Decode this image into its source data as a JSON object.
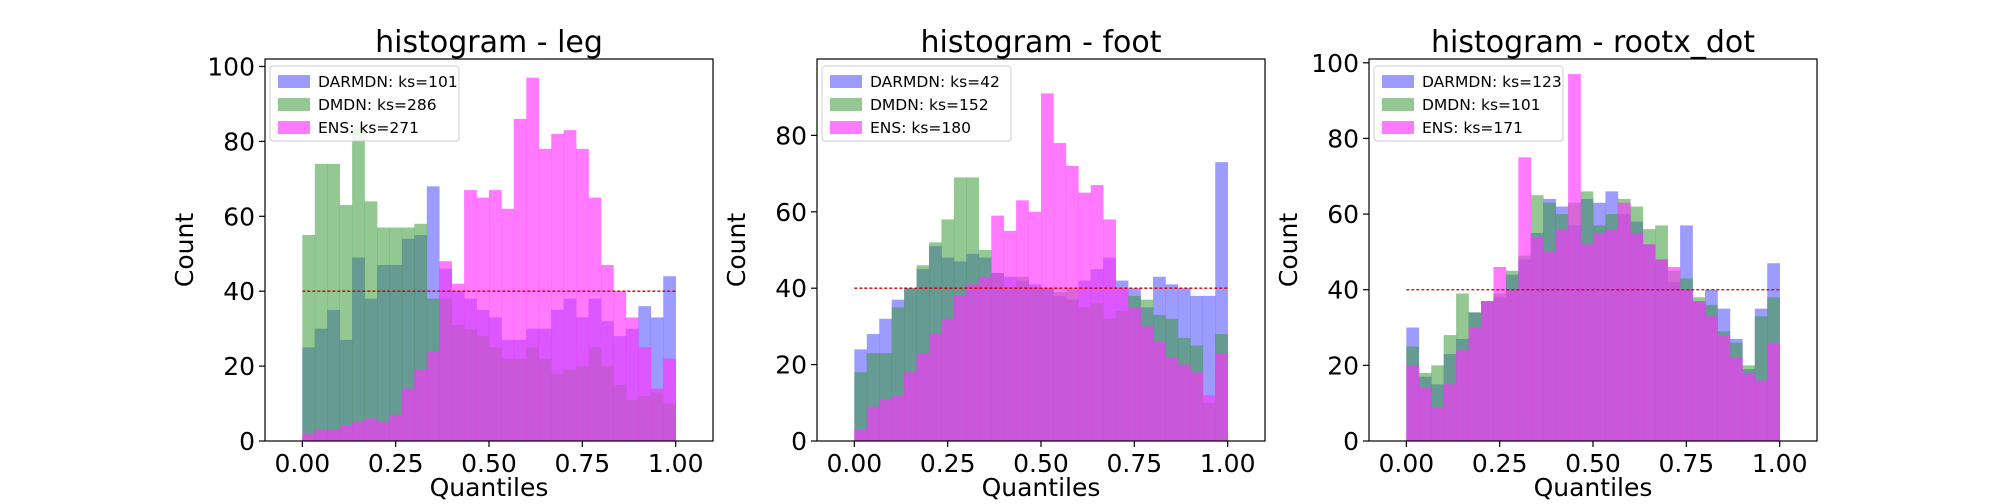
{
  "chart_data": [
    {
      "type": "bar",
      "title": "histogram - leg",
      "xlabel": "Quantiles",
      "ylabel": "Count",
      "xlim": [
        -0.1,
        1.1
      ],
      "ylim": [
        0,
        102
      ],
      "xticks": [
        "0.00",
        "0.25",
        "0.50",
        "0.75",
        "1.00"
      ],
      "yticks": [
        "0",
        "20",
        "40",
        "60",
        "80",
        "100"
      ],
      "reference_line": 40,
      "legend": "top-left",
      "series": [
        {
          "name": "DARMDN: ks=101",
          "color": "#5a5aff",
          "values": [
            25,
            30,
            35,
            27,
            49,
            38,
            47,
            47,
            54,
            55,
            68,
            46,
            40,
            38,
            35,
            33,
            27,
            27,
            30,
            30,
            35,
            38,
            33,
            38,
            32,
            28,
            30,
            36,
            33,
            44
          ]
        },
        {
          "name": "DMDN: ks=286",
          "color": "#3a9a3a",
          "values": [
            55,
            74,
            74,
            63,
            84,
            64,
            57,
            57,
            57,
            58,
            38,
            38,
            31,
            30,
            28,
            25,
            22,
            22,
            25,
            22,
            18,
            19,
            20,
            25,
            20,
            15,
            11,
            12,
            13,
            10
          ]
        },
        {
          "name": "ENS: ks=271",
          "color": "#ff33ff",
          "values": [
            2,
            3,
            3,
            4,
            5,
            6,
            5,
            7,
            14,
            19,
            24,
            48,
            42,
            67,
            65,
            67,
            62,
            86,
            97,
            78,
            82,
            83,
            78,
            65,
            47,
            40,
            33,
            25,
            14,
            22
          ]
        }
      ]
    },
    {
      "type": "bar",
      "title": "histogram - foot",
      "xlabel": "Quantiles",
      "ylabel": "Count",
      "xlim": [
        -0.1,
        1.1
      ],
      "ylim": [
        0,
        100
      ],
      "xticks": [
        "0.00",
        "0.25",
        "0.50",
        "0.75",
        "1.00"
      ],
      "yticks": [
        "0",
        "20",
        "40",
        "60",
        "80"
      ],
      "reference_line": 40,
      "legend": "top-left",
      "series": [
        {
          "name": "DARMDN: ks=42",
          "color": "#5a5aff",
          "values": [
            24,
            28,
            32,
            37,
            40,
            45,
            51,
            48,
            47,
            49,
            48,
            44,
            43,
            42,
            41,
            40,
            38,
            37,
            42,
            45,
            48,
            42,
            40,
            35,
            43,
            41,
            40,
            38,
            38,
            73
          ]
        },
        {
          "name": "DMDN: ks=152",
          "color": "#3a9a3a",
          "values": [
            18,
            23,
            23,
            35,
            40,
            46,
            52,
            58,
            69,
            69,
            50,
            44,
            40,
            43,
            40,
            40,
            39,
            40,
            35,
            36,
            32,
            34,
            38,
            37,
            33,
            32,
            27,
            25,
            10,
            28
          ]
        },
        {
          "name": "ENS: ks=180",
          "color": "#ff33ff",
          "values": [
            3,
            9,
            11,
            12,
            18,
            23,
            28,
            32,
            38,
            41,
            43,
            59,
            55,
            63,
            60,
            91,
            78,
            72,
            65,
            67,
            58,
            40,
            35,
            30,
            26,
            22,
            20,
            18,
            12,
            23
          ]
        }
      ]
    },
    {
      "type": "bar",
      "title": "histogram - rootx_dot",
      "xlabel": "Quantiles",
      "ylabel": "Count",
      "xlim": [
        -0.1,
        1.1
      ],
      "ylim": [
        0,
        101
      ],
      "xticks": [
        "0.00",
        "0.25",
        "0.50",
        "0.75",
        "1.00"
      ],
      "yticks": [
        "0",
        "20",
        "40",
        "60",
        "80",
        "100"
      ],
      "reference_line": 40,
      "legend": "top-left",
      "series": [
        {
          "name": "DARMDN: ks=123",
          "color": "#5a5aff",
          "values": [
            30,
            17,
            15,
            23,
            27,
            34,
            37,
            38,
            44,
            48,
            55,
            64,
            62,
            57,
            64,
            63,
            66,
            60,
            58,
            52,
            48,
            42,
            57,
            37,
            40,
            35,
            27,
            19,
            35,
            47
          ]
        },
        {
          "name": "DMDN: ks=101",
          "color": "#3a9a3a",
          "values": [
            25,
            18,
            20,
            28,
            39,
            34,
            37,
            39,
            45,
            49,
            65,
            63,
            60,
            63,
            66,
            57,
            60,
            64,
            62,
            56,
            57,
            45,
            43,
            38,
            36,
            29,
            26,
            20,
            33,
            38
          ]
        },
        {
          "name": "ENS: ks=171",
          "color": "#ff33ff",
          "values": [
            20,
            14,
            9,
            15,
            24,
            30,
            37,
            46,
            40,
            75,
            54,
            50,
            56,
            97,
            52,
            55,
            56,
            63,
            55,
            52,
            48,
            46,
            40,
            37,
            33,
            28,
            22,
            18,
            16,
            26
          ]
        }
      ]
    }
  ]
}
